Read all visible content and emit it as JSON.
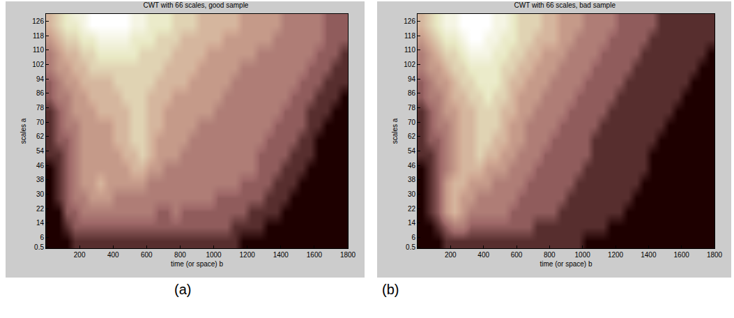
{
  "chart_data": [
    {
      "type": "heatmap",
      "panel": "(a)",
      "title": "CWT with 66 scales, good sample",
      "x_label": "time (or space) b",
      "y_label": "scales a",
      "xlim": [
        0,
        1800
      ],
      "ylim": [
        0,
        130
      ],
      "xticks": [
        200,
        400,
        600,
        800,
        1000,
        1200,
        1400,
        1600,
        1800
      ],
      "yticks": [
        0.5,
        6,
        14,
        22,
        30,
        38,
        46,
        54,
        62,
        70,
        78,
        86,
        94,
        102,
        110,
        118,
        126
      ],
      "x": [
        25,
        75,
        125,
        175,
        225,
        275,
        325,
        375,
        425,
        475,
        525,
        575,
        625,
        675,
        725,
        775,
        825,
        875,
        925,
        975,
        1025,
        1075,
        1125,
        1175,
        1225,
        1275,
        1325,
        1375,
        1425,
        1475,
        1525,
        1575,
        1625,
        1675,
        1725,
        1775
      ],
      "y": [
        4,
        12,
        20,
        28,
        36,
        44,
        52,
        60,
        68,
        76,
        84,
        92,
        100,
        108,
        116,
        124,
        132
      ],
      "z": [
        [
          0,
          0,
          0,
          1,
          1,
          1,
          1,
          1,
          1,
          1,
          1,
          1,
          1,
          1,
          1,
          1,
          1,
          1,
          1,
          1,
          1,
          1,
          1,
          0,
          0,
          0,
          0,
          0,
          0,
          0,
          0,
          0,
          0,
          0,
          0,
          0
        ],
        [
          0,
          0,
          1,
          2,
          2,
          2,
          2,
          2,
          2,
          2,
          2,
          2,
          2,
          2,
          2,
          2,
          2,
          2,
          2,
          2,
          2,
          2,
          1,
          1,
          1,
          1,
          0,
          0,
          0,
          0,
          0,
          0,
          0,
          0,
          0,
          0
        ],
        [
          0,
          0,
          2,
          2,
          3,
          3,
          3,
          3,
          3,
          3,
          3,
          3,
          3,
          2,
          2,
          3,
          2,
          2,
          2,
          2,
          2,
          2,
          2,
          2,
          1,
          1,
          1,
          1,
          0,
          0,
          0,
          0,
          0,
          0,
          0,
          0
        ],
        [
          0,
          1,
          2,
          3,
          3,
          4,
          4,
          4,
          3,
          3,
          3,
          3,
          3,
          3,
          3,
          3,
          3,
          3,
          3,
          3,
          2,
          2,
          2,
          2,
          2,
          2,
          1,
          1,
          1,
          0,
          0,
          0,
          0,
          0,
          0,
          0
        ],
        [
          0,
          1,
          2,
          3,
          4,
          4,
          5,
          4,
          4,
          4,
          4,
          4,
          3,
          3,
          3,
          3,
          3,
          3,
          3,
          3,
          3,
          3,
          3,
          2,
          2,
          2,
          2,
          1,
          1,
          1,
          0,
          0,
          0,
          0,
          0,
          0
        ],
        [
          0,
          1,
          2,
          3,
          4,
          4,
          4,
          4,
          4,
          4,
          5,
          5,
          4,
          4,
          3,
          3,
          3,
          3,
          3,
          3,
          3,
          3,
          3,
          3,
          3,
          2,
          2,
          2,
          1,
          1,
          1,
          0,
          0,
          0,
          0,
          0
        ],
        [
          1,
          1,
          2,
          3,
          4,
          4,
          4,
          4,
          4,
          5,
          5,
          6,
          5,
          4,
          4,
          4,
          3,
          3,
          3,
          3,
          3,
          3,
          3,
          3,
          3,
          2,
          2,
          2,
          2,
          1,
          1,
          1,
          0,
          0,
          0,
          0
        ],
        [
          1,
          2,
          2,
          3,
          4,
          4,
          4,
          4,
          5,
          5,
          6,
          6,
          5,
          4,
          4,
          4,
          4,
          3,
          3,
          3,
          3,
          3,
          3,
          3,
          3,
          3,
          2,
          2,
          2,
          2,
          1,
          1,
          0,
          0,
          0,
          0
        ],
        [
          1,
          2,
          3,
          3,
          4,
          4,
          4,
          4,
          5,
          5,
          6,
          6,
          5,
          5,
          4,
          4,
          4,
          4,
          3,
          3,
          3,
          3,
          3,
          3,
          3,
          3,
          3,
          2,
          2,
          2,
          2,
          1,
          1,
          0,
          0,
          0
        ],
        [
          1,
          2,
          3,
          4,
          4,
          4,
          5,
          5,
          5,
          5,
          6,
          6,
          5,
          5,
          4,
          4,
          4,
          4,
          4,
          4,
          3,
          3,
          3,
          3,
          3,
          3,
          3,
          3,
          2,
          2,
          2,
          1,
          1,
          1,
          0,
          0
        ],
        [
          2,
          3,
          3,
          4,
          4,
          5,
          5,
          5,
          5,
          6,
          6,
          6,
          5,
          5,
          5,
          4,
          4,
          4,
          4,
          4,
          4,
          3,
          3,
          3,
          3,
          3,
          3,
          3,
          3,
          2,
          2,
          2,
          1,
          1,
          1,
          0
        ],
        [
          2,
          3,
          4,
          4,
          5,
          5,
          5,
          5,
          6,
          6,
          6,
          6,
          6,
          5,
          5,
          5,
          5,
          4,
          4,
          4,
          4,
          4,
          3,
          3,
          3,
          3,
          3,
          3,
          3,
          3,
          2,
          2,
          2,
          1,
          1,
          1
        ],
        [
          3,
          4,
          4,
          5,
          5,
          6,
          6,
          6,
          6,
          6,
          6,
          6,
          6,
          6,
          5,
          5,
          5,
          5,
          4,
          4,
          4,
          4,
          4,
          3,
          3,
          3,
          3,
          3,
          3,
          3,
          3,
          2,
          2,
          2,
          1,
          1
        ],
        [
          3,
          4,
          5,
          5,
          6,
          6,
          7,
          7,
          7,
          7,
          7,
          6,
          6,
          6,
          6,
          5,
          5,
          5,
          5,
          4,
          4,
          4,
          4,
          4,
          4,
          3,
          3,
          3,
          3,
          3,
          3,
          3,
          2,
          2,
          2,
          1
        ],
        [
          4,
          5,
          6,
          6,
          7,
          7,
          8,
          8,
          8,
          8,
          7,
          7,
          7,
          6,
          6,
          6,
          5,
          5,
          5,
          5,
          5,
          4,
          4,
          4,
          4,
          4,
          4,
          3,
          3,
          3,
          3,
          3,
          3,
          2,
          2,
          2
        ],
        [
          5,
          6,
          7,
          7,
          8,
          9,
          9,
          9,
          9,
          9,
          8,
          8,
          7,
          7,
          7,
          6,
          6,
          6,
          5,
          5,
          5,
          5,
          5,
          4,
          4,
          4,
          4,
          4,
          3,
          3,
          3,
          3,
          3,
          2,
          2,
          2
        ],
        [
          5,
          6,
          7,
          8,
          8,
          9,
          9,
          9,
          9,
          9,
          8,
          8,
          7,
          7,
          7,
          6,
          6,
          6,
          5,
          5,
          5,
          5,
          5,
          4,
          4,
          4,
          4,
          4,
          3,
          3,
          3,
          3,
          3,
          2,
          2,
          2
        ]
      ]
    },
    {
      "type": "heatmap",
      "panel": "(b)",
      "title": "CWT with 66 scales, bad sample",
      "x_label": "time (or space) b",
      "y_label": "scales a",
      "xlim": [
        0,
        1800
      ],
      "ylim": [
        0,
        130
      ],
      "xticks": [
        200,
        400,
        600,
        800,
        1000,
        1200,
        1400,
        1600,
        1800
      ],
      "yticks": [
        0.5,
        6,
        14,
        22,
        30,
        38,
        46,
        54,
        62,
        70,
        78,
        86,
        94,
        102,
        110,
        118,
        126
      ],
      "x": [
        25,
        75,
        125,
        175,
        225,
        275,
        325,
        375,
        425,
        475,
        525,
        575,
        625,
        675,
        725,
        775,
        825,
        875,
        925,
        975,
        1025,
        1075,
        1125,
        1175,
        1225,
        1275,
        1325,
        1375,
        1425,
        1475,
        1525,
        1575,
        1625,
        1675,
        1725,
        1775
      ],
      "y": [
        4,
        12,
        20,
        28,
        36,
        44,
        52,
        60,
        68,
        76,
        84,
        92,
        100,
        108,
        116,
        124,
        132
      ],
      "z": [
        [
          0,
          0,
          0,
          1,
          1,
          1,
          1,
          1,
          1,
          1,
          1,
          1,
          1,
          1,
          1,
          1,
          1,
          1,
          1,
          1,
          0,
          0,
          0,
          0,
          0,
          0,
          0,
          0,
          0,
          0,
          0,
          0,
          0,
          0,
          0,
          0
        ],
        [
          0,
          0,
          1,
          2,
          3,
          3,
          2,
          2,
          2,
          2,
          2,
          2,
          2,
          2,
          1,
          1,
          1,
          1,
          1,
          1,
          1,
          1,
          1,
          0,
          0,
          0,
          0,
          0,
          0,
          0,
          0,
          0,
          0,
          0,
          0,
          0
        ],
        [
          0,
          1,
          2,
          4,
          5,
          4,
          3,
          3,
          3,
          3,
          3,
          2,
          2,
          2,
          2,
          2,
          2,
          1,
          1,
          1,
          1,
          1,
          1,
          1,
          1,
          0,
          0,
          0,
          0,
          0,
          0,
          0,
          0,
          0,
          0,
          0
        ],
        [
          0,
          1,
          2,
          4,
          5,
          4,
          4,
          3,
          3,
          3,
          3,
          3,
          2,
          2,
          2,
          2,
          2,
          2,
          1,
          1,
          1,
          1,
          1,
          1,
          1,
          1,
          0,
          0,
          0,
          0,
          0,
          0,
          0,
          0,
          0,
          0
        ],
        [
          0,
          1,
          2,
          4,
          5,
          5,
          4,
          4,
          4,
          3,
          3,
          3,
          3,
          2,
          2,
          2,
          2,
          2,
          2,
          1,
          1,
          1,
          1,
          1,
          1,
          1,
          1,
          0,
          0,
          0,
          0,
          0,
          0,
          0,
          0,
          0
        ],
        [
          0,
          1,
          2,
          3,
          4,
          5,
          5,
          5,
          4,
          4,
          4,
          3,
          3,
          3,
          2,
          2,
          2,
          2,
          2,
          2,
          1,
          1,
          1,
          1,
          1,
          1,
          1,
          1,
          0,
          0,
          0,
          0,
          0,
          0,
          0,
          0
        ],
        [
          1,
          1,
          2,
          3,
          4,
          5,
          5,
          6,
          5,
          5,
          4,
          4,
          3,
          3,
          3,
          2,
          2,
          2,
          2,
          2,
          2,
          1,
          1,
          1,
          1,
          1,
          1,
          1,
          0,
          0,
          0,
          0,
          0,
          0,
          0,
          0
        ],
        [
          1,
          2,
          2,
          3,
          4,
          5,
          5,
          6,
          6,
          5,
          5,
          4,
          4,
          3,
          3,
          3,
          2,
          2,
          2,
          2,
          2,
          1,
          1,
          1,
          1,
          1,
          1,
          1,
          1,
          0,
          0,
          0,
          0,
          0,
          0,
          0
        ],
        [
          1,
          2,
          3,
          3,
          4,
          5,
          5,
          6,
          6,
          6,
          5,
          4,
          4,
          3,
          3,
          3,
          3,
          2,
          2,
          2,
          2,
          2,
          1,
          1,
          1,
          1,
          1,
          1,
          1,
          1,
          0,
          0,
          0,
          0,
          0,
          0
        ],
        [
          1,
          2,
          3,
          4,
          4,
          5,
          5,
          6,
          6,
          6,
          5,
          5,
          4,
          4,
          3,
          3,
          3,
          3,
          2,
          2,
          2,
          2,
          2,
          1,
          1,
          1,
          1,
          1,
          1,
          1,
          1,
          0,
          0,
          0,
          0,
          0
        ],
        [
          2,
          3,
          3,
          4,
          5,
          5,
          6,
          6,
          7,
          6,
          6,
          5,
          4,
          4,
          4,
          3,
          3,
          3,
          3,
          2,
          2,
          2,
          2,
          2,
          1,
          1,
          1,
          1,
          1,
          1,
          1,
          1,
          0,
          0,
          0,
          0
        ],
        [
          2,
          3,
          4,
          4,
          5,
          6,
          6,
          7,
          7,
          7,
          6,
          5,
          5,
          4,
          4,
          4,
          3,
          3,
          3,
          3,
          2,
          2,
          2,
          2,
          2,
          1,
          1,
          1,
          1,
          1,
          1,
          1,
          1,
          0,
          0,
          0
        ],
        [
          3,
          4,
          4,
          5,
          6,
          6,
          7,
          7,
          7,
          7,
          6,
          6,
          5,
          5,
          4,
          4,
          4,
          3,
          3,
          3,
          3,
          2,
          2,
          2,
          2,
          2,
          1,
          1,
          1,
          1,
          1,
          1,
          1,
          1,
          0,
          0
        ],
        [
          3,
          4,
          5,
          6,
          6,
          7,
          8,
          8,
          8,
          7,
          7,
          6,
          6,
          5,
          5,
          4,
          4,
          4,
          3,
          3,
          3,
          3,
          2,
          2,
          2,
          2,
          2,
          1,
          1,
          1,
          1,
          1,
          1,
          1,
          1,
          0
        ],
        [
          4,
          5,
          6,
          7,
          7,
          8,
          9,
          9,
          8,
          8,
          7,
          7,
          6,
          6,
          5,
          5,
          5,
          4,
          4,
          3,
          3,
          3,
          3,
          2,
          2,
          2,
          2,
          2,
          1,
          1,
          1,
          1,
          1,
          1,
          1,
          1
        ],
        [
          5,
          6,
          7,
          8,
          8,
          9,
          9,
          9,
          9,
          8,
          8,
          7,
          6,
          6,
          6,
          5,
          5,
          4,
          4,
          4,
          3,
          3,
          3,
          3,
          2,
          2,
          2,
          2,
          2,
          1,
          1,
          1,
          1,
          1,
          1,
          1
        ],
        [
          5,
          6,
          7,
          8,
          8,
          9,
          9,
          9,
          9,
          8,
          8,
          7,
          6,
          6,
          6,
          5,
          5,
          4,
          4,
          4,
          3,
          3,
          3,
          3,
          2,
          2,
          2,
          2,
          2,
          1,
          1,
          1,
          1,
          1,
          1,
          1
        ]
      ]
    }
  ]
}
